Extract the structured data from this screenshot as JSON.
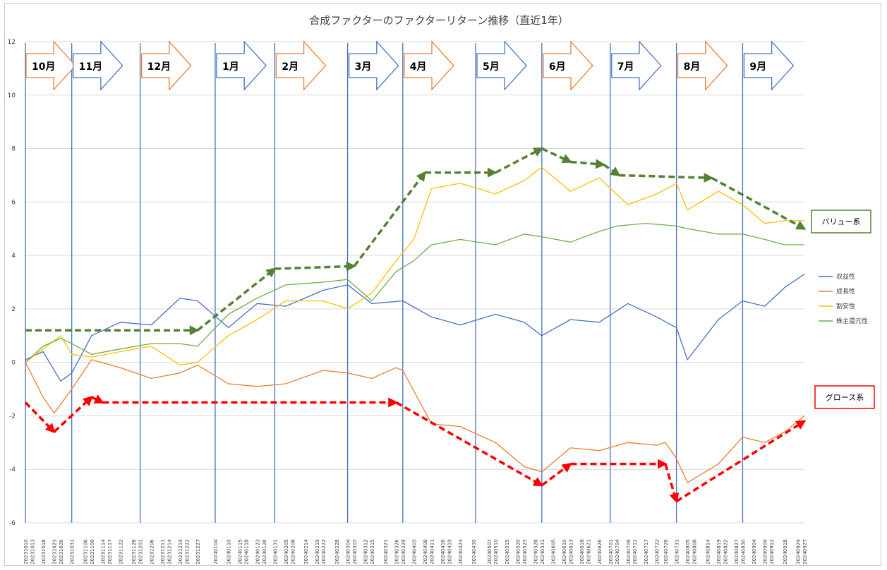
{
  "chart_data": {
    "type": "line",
    "title": "合成ファクターのファクターリターン推移（直近1年）",
    "xlabel": "",
    "ylabel": "",
    "ylim": [
      -6,
      12
    ],
    "yticks": [
      -6,
      -4,
      -2,
      0,
      2,
      4,
      6,
      8,
      10,
      12
    ],
    "grid": true,
    "legend_position": "right",
    "x_ticks": [
      "20231010",
      "20231013",
      "20231018",
      "20231023",
      "20231026",
      "20231031",
      "20231106",
      "20231109",
      "20231114",
      "20231117",
      "20231122",
      "20231128",
      "20231201",
      "20231206",
      "20231211",
      "20231214",
      "20231219",
      "20231222",
      "20231227",
      "20240104",
      "20240110",
      "20240115",
      "20240118",
      "20240123",
      "20240126",
      "20240131",
      "20240205",
      "20240208",
      "20240214",
      "20240219",
      "20240222",
      "20240228",
      "20240304",
      "20240307",
      "20240312",
      "20240315",
      "20240321",
      "20240326",
      "20240329",
      "20240403",
      "20240408",
      "20240411",
      "20240416",
      "20240419",
      "20240424",
      "20240430",
      "20240507",
      "20240510",
      "20240515",
      "20240520",
      "20240523",
      "20240528",
      "20240531",
      "20240605",
      "20240610",
      "20240613",
      "20240618",
      "20240621",
      "20240626",
      "20240701",
      "20240704",
      "20240709",
      "20240712",
      "20240717",
      "20240722",
      "20240726",
      "20240731",
      "20240805",
      "20240808",
      "20240814",
      "20240819",
      "20240822",
      "20240827",
      "20240830",
      "20240904",
      "20240909",
      "20240912",
      "20240918",
      "20240924",
      "20240927"
    ],
    "series": [
      {
        "name": "収益性",
        "color": "#4472c4",
        "x": [
          "20231010",
          "20231018",
          "20231026",
          "20231031",
          "20231109",
          "20231122",
          "20231206",
          "20231219",
          "20231227",
          "20240110",
          "20240123",
          "20240205",
          "20240222",
          "20240304",
          "20240315",
          "20240329",
          "20240411",
          "20240424",
          "20240510",
          "20240523",
          "20240531",
          "20240613",
          "20240626",
          "20240709",
          "20240722",
          "20240731",
          "20240805",
          "20240819",
          "20240830",
          "20240909",
          "20240918",
          "20240927"
        ],
        "y": [
          0.1,
          0.4,
          -0.7,
          -0.4,
          1.0,
          1.5,
          1.4,
          2.4,
          2.3,
          1.3,
          2.2,
          2.1,
          2.7,
          2.9,
          2.2,
          2.3,
          1.7,
          1.4,
          1.8,
          1.5,
          1.0,
          1.6,
          1.5,
          2.2,
          1.7,
          1.3,
          0.1,
          1.6,
          2.3,
          2.1,
          2.8,
          3.3
        ]
      },
      {
        "name": "成長性",
        "color": "#ed7d31",
        "x": [
          "20231010",
          "20231018",
          "20231023",
          "20231031",
          "20231109",
          "20231122",
          "20231206",
          "20231219",
          "20231227",
          "20240110",
          "20240123",
          "20240205",
          "20240222",
          "20240304",
          "20240315",
          "20240326",
          "20240329",
          "20240411",
          "20240424",
          "20240510",
          "20240523",
          "20240531",
          "20240613",
          "20240626",
          "20240709",
          "20240722",
          "20240726",
          "20240731",
          "20240805",
          "20240819",
          "20240830",
          "20240909",
          "20240918",
          "20240927"
        ],
        "y": [
          0.0,
          -1.3,
          -1.9,
          -1.0,
          0.1,
          -0.2,
          -0.6,
          -0.4,
          -0.1,
          -0.8,
          -0.9,
          -0.8,
          -0.3,
          -0.4,
          -0.6,
          -0.2,
          -0.3,
          -2.3,
          -2.4,
          -3.0,
          -3.9,
          -4.1,
          -3.2,
          -3.3,
          -3.0,
          -3.1,
          -3.0,
          -3.6,
          -4.5,
          -3.8,
          -2.8,
          -3.0,
          -2.6,
          -2.0
        ]
      },
      {
        "name": "割安性",
        "color": "#ffc000",
        "x": [
          "20231010",
          "20231018",
          "20231026",
          "20231031",
          "20231109",
          "20231122",
          "20231206",
          "20231219",
          "20231227",
          "20240110",
          "20240123",
          "20240205",
          "20240222",
          "20240304",
          "20240315",
          "20240326",
          "20240403",
          "20240411",
          "20240424",
          "20240510",
          "20240523",
          "20240531",
          "20240613",
          "20240626",
          "20240709",
          "20240722",
          "20240731",
          "20240805",
          "20240819",
          "20240830",
          "20240909",
          "20240918",
          "20240927"
        ],
        "y": [
          0.0,
          0.5,
          1.0,
          0.3,
          0.2,
          0.4,
          0.6,
          -0.1,
          0.0,
          1.0,
          1.6,
          2.3,
          2.3,
          2.0,
          2.6,
          3.8,
          4.6,
          6.5,
          6.7,
          6.3,
          6.8,
          7.3,
          6.4,
          6.9,
          5.9,
          6.3,
          6.7,
          5.7,
          6.4,
          5.9,
          5.2,
          5.3,
          5.3
        ]
      },
      {
        "name": "株主還元性",
        "color": "#70ad47",
        "x": [
          "20231010",
          "20231018",
          "20231026",
          "20231031",
          "20231109",
          "20231122",
          "20231206",
          "20231219",
          "20231227",
          "20240110",
          "20240123",
          "20240205",
          "20240222",
          "20240304",
          "20240315",
          "20240326",
          "20240403",
          "20240411",
          "20240424",
          "20240510",
          "20240523",
          "20240531",
          "20240613",
          "20240626",
          "20240704",
          "20240717",
          "20240731",
          "20240805",
          "20240819",
          "20240830",
          "20240909",
          "20240918",
          "20240927"
        ],
        "y": [
          0.0,
          0.6,
          0.9,
          0.7,
          0.3,
          0.5,
          0.7,
          0.7,
          0.6,
          1.8,
          2.4,
          2.9,
          3.0,
          3.1,
          2.3,
          3.4,
          3.8,
          4.4,
          4.6,
          4.4,
          4.8,
          4.7,
          4.5,
          4.9,
          5.1,
          5.2,
          5.1,
          5.0,
          4.8,
          4.8,
          4.6,
          4.4,
          4.4
        ]
      }
    ]
  },
  "months": [
    "10月",
    "11月",
    "12月",
    "1月",
    "2月",
    "3月",
    "4月",
    "5月",
    "6月",
    "7月",
    "8月",
    "9月"
  ],
  "month_starts": [
    "20231010",
    "20231031",
    "20231201",
    "20240104",
    "20240131",
    "20240304",
    "20240329",
    "20240501",
    "20240531",
    "20240701",
    "20240731",
    "20240830"
  ],
  "month_colors": [
    "#ed7d31",
    "#4472c4",
    "#ed7d31",
    "#4472c4",
    "#ed7d31",
    "#4472c4",
    "#ed7d31",
    "#4472c4",
    "#ed7d31",
    "#4472c4",
    "#ed7d31",
    "#4472c4"
  ],
  "value_group": {
    "label": "バリュー系",
    "color": "#548235",
    "x": [
      "20231010",
      "20231227",
      "20240131",
      "20240307",
      "20240408",
      "20240510",
      "20240531",
      "20240613",
      "20240628",
      "20240705",
      "20240816",
      "20240927"
    ],
    "y": [
      1.2,
      1.2,
      3.5,
      3.6,
      7.1,
      7.1,
      8.0,
      7.5,
      7.4,
      7.0,
      6.9,
      5.0
    ]
  },
  "growth_group": {
    "label": "グロース系",
    "color": "#ff0000",
    "x": [
      "20231010",
      "20231023",
      "20231109",
      "20231114",
      "20240326",
      "20240531",
      "20240613",
      "20240726",
      "20240731",
      "20240927"
    ],
    "y": [
      -1.5,
      -2.6,
      -1.3,
      -1.5,
      -1.5,
      -4.6,
      -3.8,
      -3.8,
      -5.2,
      -2.2
    ]
  }
}
